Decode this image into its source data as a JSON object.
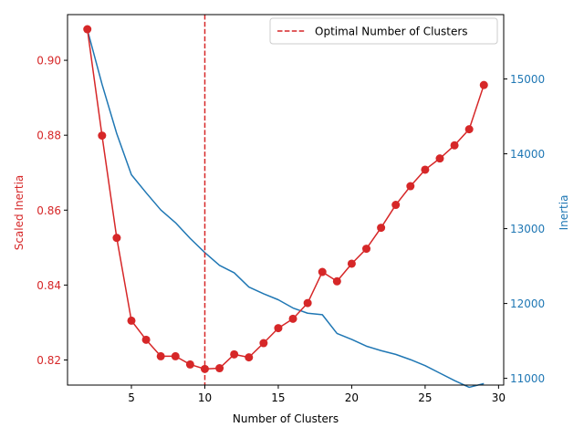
{
  "chart_data": {
    "type": "line",
    "title": "",
    "xlabel": "Number of Clusters",
    "ylabel_left": "Scaled Inertia",
    "ylabel_right": "Inertia",
    "xlim": [
      0.65,
      30.35
    ],
    "ylim_left": [
      0.8133,
      0.9122
    ],
    "ylim_right": [
      10910,
      15860
    ],
    "x_ticks": [
      5,
      10,
      15,
      20,
      25,
      30
    ],
    "x_tick_labels": [
      "5",
      "10",
      "15",
      "20",
      "25",
      "30"
    ],
    "y_left_ticks": [
      0.82,
      0.84,
      0.86,
      0.88,
      0.9
    ],
    "y_left_tick_labels": [
      "0.82",
      "0.84",
      "0.86",
      "0.88",
      "0.90"
    ],
    "y_right_ticks": [
      11000,
      12000,
      13000,
      14000,
      15000
    ],
    "y_right_tick_labels": [
      "11000",
      "12000",
      "13000",
      "14000",
      "15000"
    ],
    "grid": false,
    "legend": {
      "placement": "top-right",
      "entries": [
        "Optimal Number of Clusters"
      ]
    },
    "optimal_clusters": 10,
    "series": [
      {
        "axis": "left",
        "color": "#d62728",
        "marker": "circle",
        "x": [
          2,
          3,
          4,
          5,
          6,
          7,
          8,
          9,
          10,
          11,
          12,
          13,
          14,
          15,
          16,
          17,
          18,
          19,
          20,
          21,
          22,
          23,
          24,
          25,
          26,
          27,
          28,
          29
        ],
        "values": [
          0.9083,
          0.8799,
          0.8526,
          0.8305,
          0.8254,
          0.821,
          0.821,
          0.8188,
          0.8176,
          0.8178,
          0.8215,
          0.8207,
          0.8245,
          0.8285,
          0.831,
          0.8352,
          0.8435,
          0.841,
          0.8457,
          0.8497,
          0.8553,
          0.8614,
          0.8664,
          0.8708,
          0.8738,
          0.8773,
          0.8816,
          0.8934
        ]
      },
      {
        "axis": "right",
        "color": "#1f77b4",
        "marker": "none",
        "x": [
          2,
          3,
          4,
          5,
          6,
          7,
          8,
          9,
          10,
          11,
          12,
          13,
          14,
          15,
          16,
          17,
          18,
          19,
          20,
          21,
          22,
          23,
          24,
          25,
          26,
          27,
          28,
          29
        ],
        "values": [
          15660,
          14930,
          14270,
          13720,
          13480,
          13250,
          13080,
          12870,
          12680,
          12510,
          12410,
          12220,
          12130,
          12050,
          11940,
          11870,
          11850,
          11600,
          11520,
          11430,
          11370,
          11320,
          11250,
          11170,
          11070,
          10970,
          10880,
          10930
        ]
      }
    ]
  }
}
